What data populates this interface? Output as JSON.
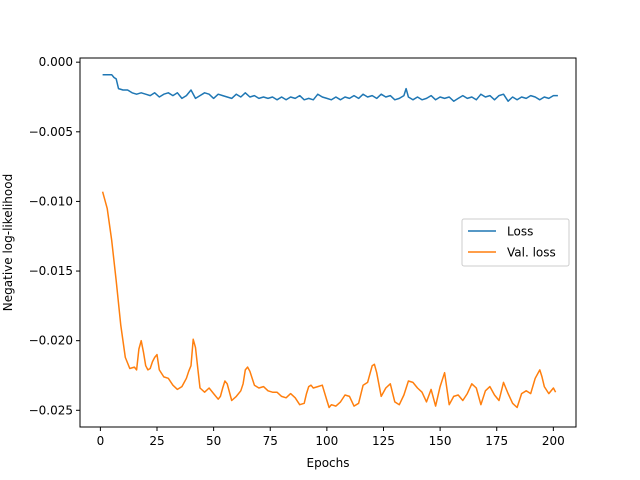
{
  "chart_data": {
    "type": "line",
    "title": "",
    "xlabel": "Epochs",
    "ylabel": "Negative log-likelihood",
    "xlim": [
      -9,
      210
    ],
    "ylim": [
      -0.0262,
      0.0003
    ],
    "x_ticks": [
      0,
      25,
      50,
      75,
      100,
      125,
      150,
      175,
      200
    ],
    "x_tick_labels": [
      "0",
      "25",
      "50",
      "75",
      "100",
      "125",
      "150",
      "175",
      "200"
    ],
    "y_ticks": [
      0.0,
      -0.005,
      -0.01,
      -0.015,
      -0.02,
      -0.025
    ],
    "y_tick_labels": [
      "0.000",
      "−0.005",
      "−0.010",
      "−0.015",
      "−0.020",
      "−0.025"
    ],
    "grid": false,
    "legend_position": "center-right",
    "series": [
      {
        "name": "Loss",
        "color": "#1f77b4",
        "x": [
          1,
          3,
          5,
          6,
          7,
          8,
          10,
          12,
          14,
          16,
          18,
          20,
          22,
          24,
          26,
          28,
          30,
          32,
          34,
          36,
          38,
          40,
          42,
          44,
          46,
          48,
          50,
          52,
          54,
          56,
          58,
          60,
          62,
          64,
          66,
          68,
          70,
          72,
          74,
          76,
          78,
          80,
          82,
          84,
          86,
          88,
          90,
          92,
          94,
          96,
          98,
          100,
          102,
          104,
          106,
          108,
          110,
          112,
          114,
          116,
          118,
          120,
          122,
          124,
          126,
          128,
          130,
          132,
          134,
          135,
          136,
          138,
          140,
          142,
          144,
          146,
          148,
          150,
          152,
          154,
          156,
          158,
          160,
          162,
          164,
          166,
          168,
          170,
          172,
          174,
          176,
          178,
          180,
          182,
          184,
          186,
          188,
          190,
          192,
          194,
          196,
          198,
          200,
          202
        ],
        "values": [
          -0.0009,
          -0.0009,
          -0.0009,
          -0.0011,
          -0.0012,
          -0.0019,
          -0.002,
          -0.002,
          -0.0022,
          -0.0023,
          -0.0022,
          -0.0023,
          -0.0024,
          -0.0022,
          -0.0025,
          -0.0023,
          -0.0022,
          -0.0024,
          -0.0022,
          -0.0026,
          -0.0024,
          -0.002,
          -0.0026,
          -0.0024,
          -0.0022,
          -0.0023,
          -0.0026,
          -0.0023,
          -0.0024,
          -0.0025,
          -0.0026,
          -0.0023,
          -0.0025,
          -0.0022,
          -0.0025,
          -0.0024,
          -0.0026,
          -0.0025,
          -0.0026,
          -0.0025,
          -0.0027,
          -0.0025,
          -0.0027,
          -0.0025,
          -0.0026,
          -0.0024,
          -0.0027,
          -0.0026,
          -0.0027,
          -0.0023,
          -0.0025,
          -0.0026,
          -0.0027,
          -0.0025,
          -0.0027,
          -0.0025,
          -0.0026,
          -0.0024,
          -0.0026,
          -0.0023,
          -0.0025,
          -0.0024,
          -0.0026,
          -0.0023,
          -0.0025,
          -0.0024,
          -0.0027,
          -0.0026,
          -0.0024,
          -0.0019,
          -0.0025,
          -0.0027,
          -0.0025,
          -0.0027,
          -0.0026,
          -0.0024,
          -0.0027,
          -0.0025,
          -0.0026,
          -0.0025,
          -0.0028,
          -0.0026,
          -0.0024,
          -0.0026,
          -0.0025,
          -0.0027,
          -0.0023,
          -0.0025,
          -0.0024,
          -0.0027,
          -0.0024,
          -0.0023,
          -0.0028,
          -0.0025,
          -0.0027,
          -0.0025,
          -0.0026,
          -0.0024,
          -0.0025,
          -0.0027,
          -0.0025,
          -0.0026,
          -0.0024,
          -0.0024
        ]
      },
      {
        "name": "Val. loss",
        "color": "#ff7f0e",
        "x": [
          1,
          3,
          5,
          7,
          9,
          11,
          13,
          15,
          16,
          17,
          18,
          19,
          20,
          21,
          22,
          23,
          24,
          25,
          26,
          28,
          30,
          32,
          34,
          36,
          38,
          39,
          40,
          41,
          42,
          43,
          44,
          46,
          48,
          50,
          52,
          53,
          54,
          55,
          56,
          58,
          60,
          62,
          63,
          64,
          65,
          66,
          68,
          70,
          72,
          74,
          76,
          78,
          80,
          82,
          84,
          86,
          88,
          90,
          91,
          92,
          93,
          94,
          96,
          98,
          100,
          101,
          102,
          104,
          106,
          108,
          110,
          112,
          114,
          116,
          118,
          120,
          121,
          122,
          124,
          126,
          128,
          130,
          132,
          134,
          136,
          138,
          140,
          142,
          144,
          146,
          148,
          150,
          152,
          154,
          156,
          158,
          160,
          162,
          164,
          166,
          168,
          170,
          172,
          174,
          176,
          178,
          180,
          182,
          184,
          186,
          188,
          190,
          192,
          194,
          195,
          196,
          198,
          200,
          201
        ],
        "values": [
          -0.0093,
          -0.0105,
          -0.0128,
          -0.0157,
          -0.0189,
          -0.0212,
          -0.022,
          -0.0219,
          -0.0221,
          -0.0206,
          -0.02,
          -0.0208,
          -0.0218,
          -0.0221,
          -0.022,
          -0.0215,
          -0.0212,
          -0.021,
          -0.0221,
          -0.0226,
          -0.0227,
          -0.0232,
          -0.0235,
          -0.0233,
          -0.0227,
          -0.0222,
          -0.0218,
          -0.0199,
          -0.0205,
          -0.022,
          -0.0234,
          -0.0237,
          -0.0234,
          -0.0238,
          -0.0242,
          -0.024,
          -0.0234,
          -0.0229,
          -0.0231,
          -0.0243,
          -0.024,
          -0.0236,
          -0.0231,
          -0.0221,
          -0.0219,
          -0.0222,
          -0.0232,
          -0.0234,
          -0.0233,
          -0.0236,
          -0.0237,
          -0.0237,
          -0.024,
          -0.0241,
          -0.0238,
          -0.0241,
          -0.0246,
          -0.0245,
          -0.0238,
          -0.0233,
          -0.0232,
          -0.0234,
          -0.0233,
          -0.0232,
          -0.0243,
          -0.0248,
          -0.0246,
          -0.0247,
          -0.0244,
          -0.0239,
          -0.024,
          -0.0247,
          -0.0245,
          -0.0232,
          -0.023,
          -0.0218,
          -0.0217,
          -0.0223,
          -0.024,
          -0.0234,
          -0.0231,
          -0.0244,
          -0.0246,
          -0.0239,
          -0.0229,
          -0.023,
          -0.0234,
          -0.0237,
          -0.0244,
          -0.0235,
          -0.0247,
          -0.0233,
          -0.0223,
          -0.0246,
          -0.024,
          -0.0239,
          -0.0243,
          -0.0238,
          -0.0231,
          -0.0234,
          -0.0246,
          -0.0236,
          -0.0233,
          -0.0239,
          -0.0243,
          -0.023,
          -0.0238,
          -0.0245,
          -0.0248,
          -0.0238,
          -0.0236,
          -0.0238,
          -0.0227,
          -0.0221,
          -0.0226,
          -0.0233,
          -0.0238,
          -0.0234,
          -0.0237
        ]
      }
    ]
  }
}
